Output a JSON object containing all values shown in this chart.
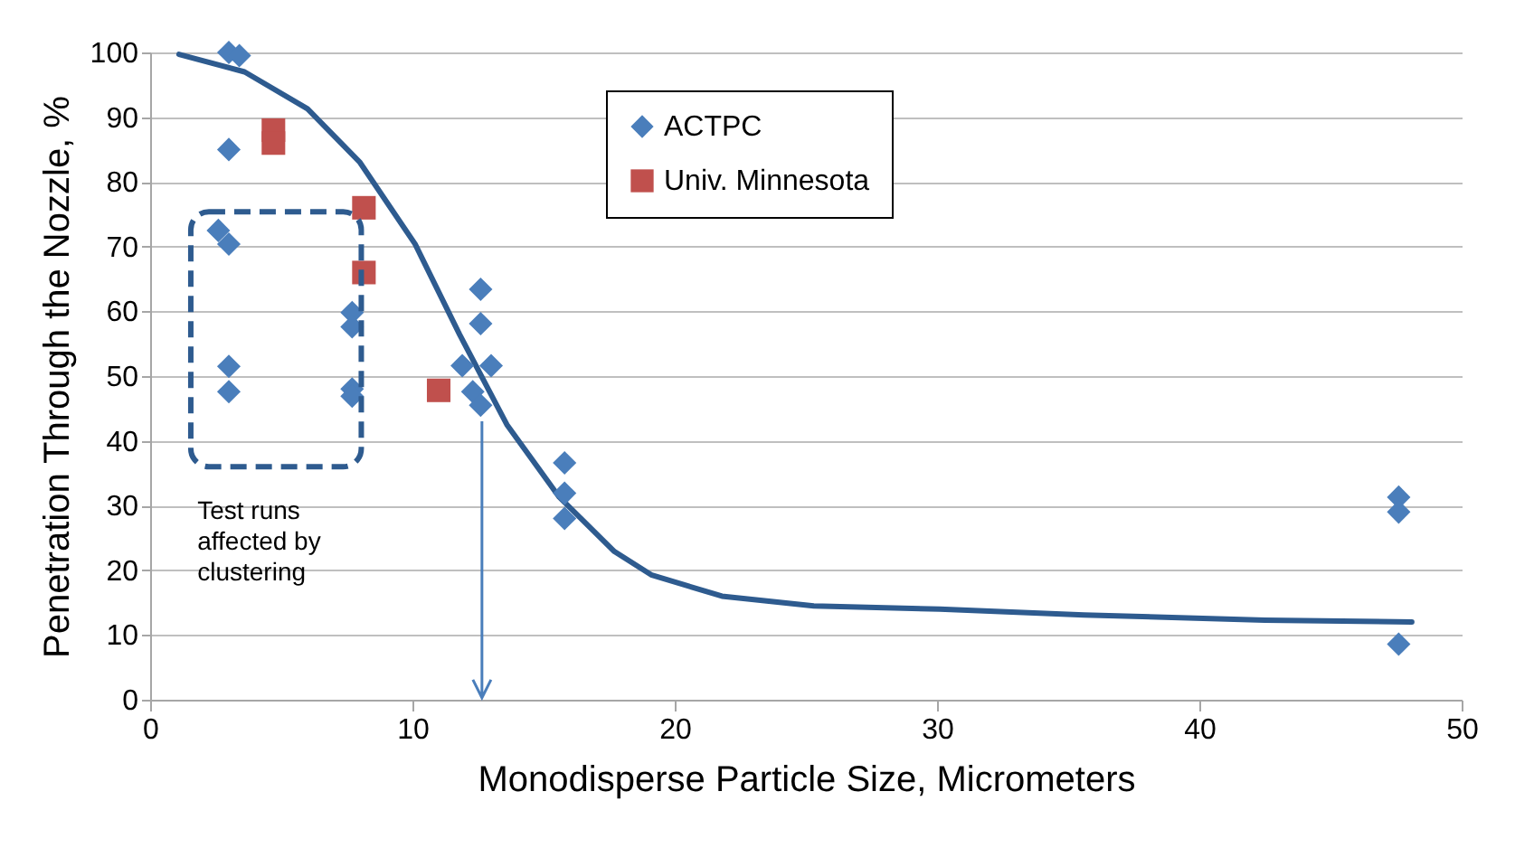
{
  "chart_data": {
    "type": "scatter",
    "xlabel": "Monodisperse Particle Size, Micrometers",
    "ylabel": "Penetration Through the Nozzle, %",
    "xlim": [
      0,
      50
    ],
    "xticks": [
      0,
      10,
      20,
      30,
      40,
      50
    ],
    "ylim": [
      0,
      100
    ],
    "yticks": [
      0,
      10,
      20,
      30,
      40,
      50,
      60,
      70,
      80,
      90,
      100
    ],
    "grid": "y",
    "legend": "top",
    "series": [
      {
        "type": "line",
        "color": "#2e5b8f",
        "marker": "none",
        "line_style": "solid",
        "x": [
          1.1,
          3.6,
          6,
          8,
          10.1,
          11.8,
          13.6,
          15.6,
          17.7,
          19.1,
          21.8,
          25.3,
          30.1,
          35.6,
          42.5,
          48.1
        ],
        "values": [
          99.7,
          97,
          91.3,
          83,
          70.4,
          56.4,
          42.5,
          31.3,
          22.9,
          19.3,
          16,
          14.5,
          14,
          13.1,
          12.3,
          12
        ]
      },
      {
        "name": "ACTPC",
        "color": "#4a7ebb",
        "marker": "diamond",
        "x": [
          3.0,
          3.4,
          3.0,
          2.6,
          3.0,
          3.0,
          3.0,
          7.7,
          7.7,
          7.7,
          7.7,
          12.6,
          12.6,
          13.0,
          11.9,
          12.3,
          12.6,
          15.8,
          15.8,
          15.8,
          47.6,
          47.6,
          47.6
        ],
        "values": [
          100,
          99.5,
          85,
          72.5,
          70.4,
          51.5,
          47.6,
          59.8,
          57.6,
          48,
          46.9,
          63.4,
          58.1,
          51.6,
          51.6,
          47.6,
          45.5,
          36.6,
          31.9,
          28,
          31.3,
          29,
          8.6
        ]
      },
      {
        "name": "Univ. Minnesota",
        "color": "#c0504d",
        "marker": "square",
        "x": [
          4.7,
          4.7,
          8.15,
          8.15,
          11.0
        ],
        "values": [
          88,
          86,
          76,
          66,
          47.8
        ]
      }
    ],
    "annotations": [
      "Test runs\naffected by\nclustering"
    ]
  }
}
